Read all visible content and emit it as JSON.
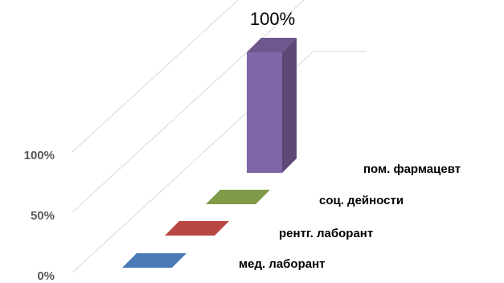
{
  "chart_data": {
    "type": "bar",
    "title": "",
    "xlabel": "",
    "ylabel": "",
    "categories": [
      "мед. лаборант",
      "рентг. лаборант",
      "соц. дейности",
      "пом. фармацевт"
    ],
    "values": [
      0,
      0,
      0,
      100
    ],
    "value_suffix": "%",
    "ylim": [
      0,
      100
    ],
    "y_ticks": [
      "0%",
      "50%",
      "100%"
    ],
    "data_labels": [
      "",
      "",
      "",
      "100%"
    ],
    "colors": [
      "#4a7ab5",
      "#b84744",
      "#7f9a48",
      "#8066a6"
    ],
    "grid": true,
    "legend": "none"
  }
}
